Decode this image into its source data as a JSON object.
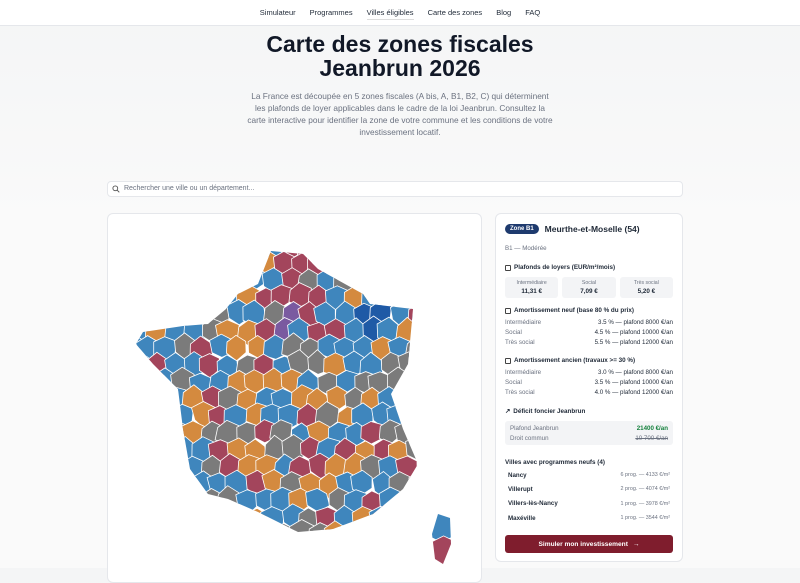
{
  "nav": [
    "Simulateur",
    "Programmes",
    "Villes éligibles",
    "Carte des zones",
    "Blog",
    "FAQ"
  ],
  "hero": {
    "title": "Carte des zones fiscales Jeanbrun 2026",
    "description": "La France est découpée en 5 zones fiscales (A bis, A, B1, B2, C) qui déterminent les plafonds de loyer applicables dans le cadre de la loi Jeanbrun. Consultez la carte interactive pour identifier la zone de votre commune et les conditions de votre investissement locatif."
  },
  "search": {
    "placeholder": "Rechercher une ville ou un département..."
  },
  "panel": {
    "badge": "Zone B1",
    "name": "Meurthe-et-Moselle (54)",
    "subtitle": "B1 — Modérée",
    "rents": {
      "title": "Plafonds de loyers (EUR/m²/mois)",
      "items": [
        {
          "label": "Intermédiaire",
          "value": "11,31 €"
        },
        {
          "label": "Social",
          "value": "7,09 €"
        },
        {
          "label": "Très social",
          "value": "5,20 €"
        }
      ]
    },
    "neuf": {
      "title": "Amortissement neuf (base 80 % du prix)",
      "rows": [
        {
          "label": "Intermédiaire",
          "value": "3.5 % — plafond 8000 €/an"
        },
        {
          "label": "Social",
          "value": "4.5 % — plafond 10000 €/an"
        },
        {
          "label": "Très social",
          "value": "5.5 % — plafond 12000 €/an"
        }
      ]
    },
    "ancien": {
      "title": "Amortissement ancien (travaux >= 30 %)",
      "rows": [
        {
          "label": "Intermédiaire",
          "value": "3.0 % — plafond 8000 €/an"
        },
        {
          "label": "Social",
          "value": "3.5 % — plafond 10000 €/an"
        },
        {
          "label": "Très social",
          "value": "4.0 % — plafond 12000 €/an"
        }
      ]
    },
    "deficit": {
      "title": "Déficit foncier Jeanbrun",
      "rows": [
        {
          "label": "Plafond Jeanbrun",
          "value": "21400 €/an"
        },
        {
          "label": "Droit commun",
          "value": "10 700 €/an"
        }
      ]
    },
    "cities": {
      "title": "Villes avec programmes neufs (4)",
      "items": [
        {
          "name": "Nancy",
          "info": "6 prog. — 4133 €/m²"
        },
        {
          "name": "Villerupt",
          "info": "2 prog. — 4074 €/m²"
        },
        {
          "name": "Villers-lès-Nancy",
          "info": "1 prog. — 3978 €/m²"
        },
        {
          "name": "Maxéville",
          "info": "1 prog. — 3544 €/m²"
        }
      ]
    },
    "button": "Simuler mon investissement"
  }
}
